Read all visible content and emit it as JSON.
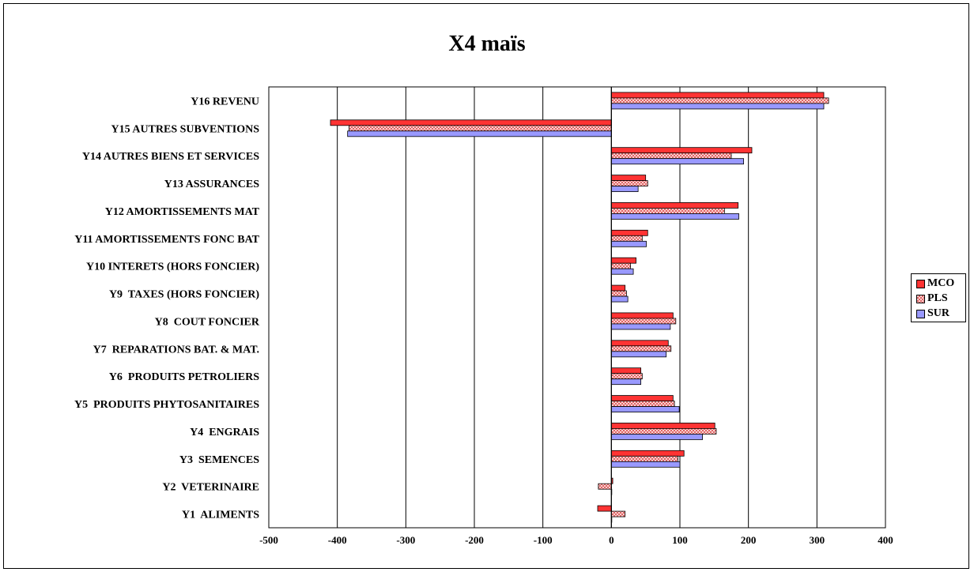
{
  "chart_data": {
    "type": "bar",
    "orientation": "horizontal",
    "title": "X4 maïs",
    "categories": [
      "Y16 REVENU",
      "Y15 AUTRES SUBVENTIONS",
      "Y14 AUTRES BIENS ET SERVICES",
      "Y13 ASSURANCES",
      "Y12 AMORTISSEMENTS MAT",
      "Y11 AMORTISSEMENTS FONC BAT",
      "Y10 INTERETS (HORS FONCIER)",
      "Y9  TAXES (HORS FONCIER)",
      "Y8  COUT FONCIER",
      "Y7  REPARATIONS BAT. & MAT.",
      "Y6  PRODUITS PETROLIERS",
      "Y5  PRODUITS PHYTOSANITAIRES",
      "Y4  ENGRAIS",
      "Y3  SEMENCES",
      "Y2  VETERINAIRE",
      "Y1  ALIMENTS"
    ],
    "series": [
      {
        "name": "MCO",
        "color": "#ff3333",
        "pattern": "solid",
        "values": [
          310,
          -410,
          205,
          50,
          185,
          53,
          36,
          20,
          90,
          83,
          43,
          90,
          151,
          106,
          2,
          -20
        ]
      },
      {
        "name": "PLS",
        "color": "#ffbbbb",
        "pattern": "checker",
        "values": [
          317,
          -383,
          175,
          53,
          165,
          45,
          28,
          22,
          94,
          87,
          45,
          92,
          153,
          97,
          -19,
          20
        ]
      },
      {
        "name": "SUR",
        "color": "#9999ff",
        "pattern": "solid",
        "values": [
          310,
          -385,
          193,
          39,
          186,
          51,
          32,
          24,
          86,
          80,
          43,
          99,
          133,
          100,
          0,
          0
        ]
      }
    ],
    "xlim": [
      -500,
      400
    ],
    "xticks": [
      -500,
      -400,
      -300,
      -200,
      -100,
      0,
      100,
      200,
      300,
      400
    ],
    "grid": "vertical",
    "legend_position": "right"
  }
}
